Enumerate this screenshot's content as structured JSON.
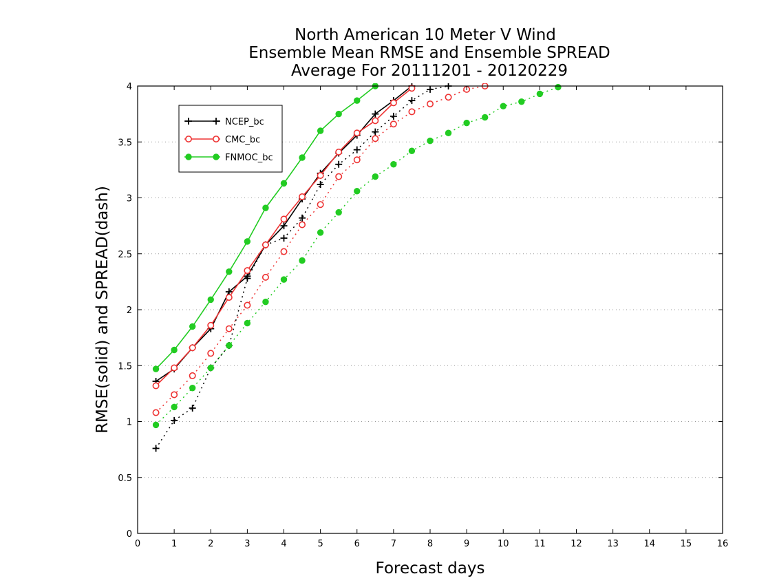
{
  "chart_data": {
    "type": "line",
    "title_lines": [
      "North American 10 Meter V Wind",
      "Ensemble Mean RMSE and Ensemble SPREAD",
      "Average For 20111201 - 20120229"
    ],
    "xlabel": "Forecast days",
    "ylabel": "RMSE(solid) and SPREAD(dash)",
    "xlim": [
      0,
      16
    ],
    "ylim": [
      0,
      4
    ],
    "x_ticks": [
      "0",
      "1",
      "2",
      "3",
      "4",
      "5",
      "6",
      "7",
      "8",
      "9",
      "10",
      "11",
      "12",
      "13",
      "14",
      "15",
      "16"
    ],
    "y_ticks": [
      "0",
      "0.5",
      "1",
      "1.5",
      "2",
      "2.5",
      "3",
      "3.5",
      "4"
    ],
    "grid": "horizontal dotted",
    "legend_placement": "top-left",
    "series": [
      {
        "name": "NCEP_bc",
        "color": "#000000",
        "marker": "plus",
        "rmse": {
          "x": [
            0.5,
            1,
            1.5,
            2,
            2.5,
            3,
            3.5,
            4,
            4.5,
            5,
            5.5,
            6,
            6.5,
            7,
            7.5
          ],
          "y": [
            1.36,
            1.47,
            1.66,
            1.83,
            2.16,
            2.3,
            2.58,
            2.75,
            2.99,
            3.22,
            3.4,
            3.56,
            3.75,
            3.87,
            4.0
          ]
        },
        "spread": {
          "x": [
            0.5,
            1,
            1.5,
            2,
            2.5,
            3,
            3.5,
            4,
            4.5,
            5,
            5.5,
            6,
            6.5,
            7,
            7.5,
            8,
            8.5
          ],
          "y": [
            0.76,
            1.01,
            1.12,
            1.48,
            1.68,
            2.28,
            2.58,
            2.64,
            2.82,
            3.12,
            3.3,
            3.43,
            3.59,
            3.73,
            3.87,
            3.97,
            4.0
          ]
        }
      },
      {
        "name": "CMC_bc",
        "color": "#ee3333",
        "marker": "open-circle",
        "rmse": {
          "x": [
            0.5,
            1,
            1.5,
            2,
            2.5,
            3,
            3.5,
            4,
            4.5,
            5,
            5.5,
            6,
            6.5,
            7,
            7.5
          ],
          "y": [
            1.32,
            1.48,
            1.66,
            1.86,
            2.11,
            2.35,
            2.58,
            2.81,
            3.01,
            3.2,
            3.41,
            3.58,
            3.69,
            3.85,
            3.98
          ]
        },
        "spread": {
          "x": [
            0.5,
            1,
            1.5,
            2,
            2.5,
            3,
            3.5,
            4,
            4.5,
            5,
            5.5,
            6,
            6.5,
            7,
            7.5,
            8,
            8.5,
            9,
            9.5
          ],
          "y": [
            1.08,
            1.24,
            1.41,
            1.61,
            1.83,
            2.04,
            2.29,
            2.52,
            2.76,
            2.94,
            3.19,
            3.34,
            3.53,
            3.66,
            3.77,
            3.84,
            3.9,
            3.97,
            4.0
          ]
        }
      },
      {
        "name": "FNMOC_bc",
        "color": "#22cc22",
        "marker": "filled-circle",
        "rmse": {
          "x": [
            0.5,
            1,
            1.5,
            2,
            2.5,
            3,
            3.5,
            4,
            4.5,
            5,
            5.5,
            6,
            6.5
          ],
          "y": [
            1.47,
            1.64,
            1.85,
            2.09,
            2.34,
            2.61,
            2.91,
            3.13,
            3.36,
            3.6,
            3.75,
            3.87,
            4.0
          ]
        },
        "spread": {
          "x": [
            0.5,
            1,
            1.5,
            2,
            2.5,
            3,
            3.5,
            4,
            4.5,
            5,
            5.5,
            6,
            6.5,
            7,
            7.5,
            8,
            8.5,
            9,
            9.5,
            10,
            10.5,
            11,
            11.5
          ],
          "y": [
            0.97,
            1.13,
            1.3,
            1.48,
            1.68,
            1.88,
            2.07,
            2.27,
            2.44,
            2.69,
            2.87,
            3.06,
            3.19,
            3.3,
            3.42,
            3.51,
            3.58,
            3.67,
            3.72,
            3.82,
            3.86,
            3.93,
            3.99
          ]
        }
      }
    ]
  }
}
